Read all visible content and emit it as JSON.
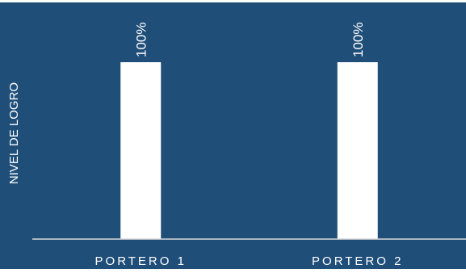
{
  "chart_data": {
    "type": "bar",
    "categories": [
      "PORTERO 1",
      "PORTERO 2"
    ],
    "values": [
      100,
      100
    ],
    "data_labels": [
      "100%",
      "100%"
    ],
    "ylabel": "NIVEL DE LOGRO",
    "xlabel": "",
    "ylim": [
      0,
      100
    ],
    "grid": false,
    "legend": "none",
    "colors": {
      "background": "#1f4e79",
      "bar": "#ffffff",
      "text": "#ffffff",
      "axis": "#d9d9d9"
    }
  }
}
